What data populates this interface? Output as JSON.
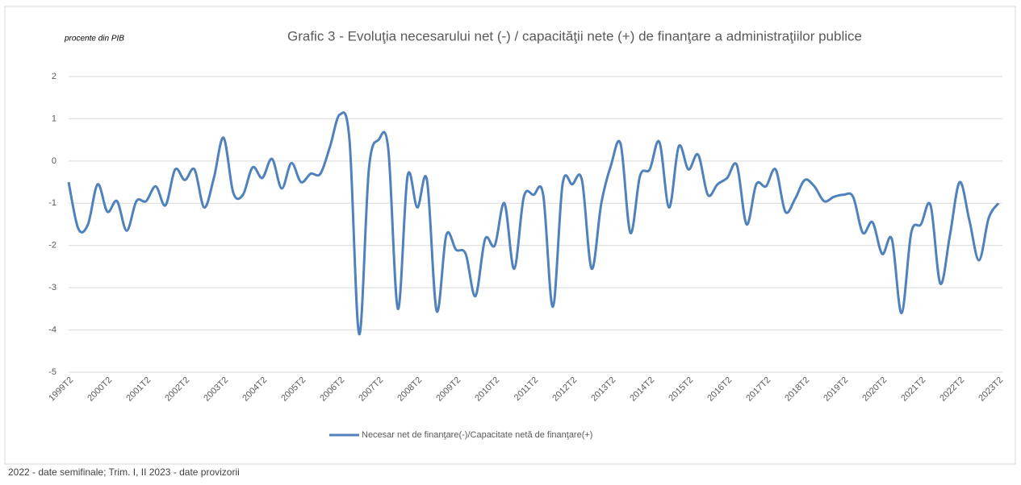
{
  "chart_data": {
    "type": "line",
    "title": "Grafic 3 - Evoluţia necesarului net (-) / capacităţii nete (+) de finanţare a administraţiilor publice",
    "y_label": "procente din PIB",
    "note": "2022 - date semifinale; Trim. I, II 2023 - date provizorii",
    "categories": [
      "1999T2",
      null,
      null,
      null,
      "2000T2",
      null,
      null,
      null,
      "2001T2",
      null,
      null,
      null,
      "2002T2",
      null,
      null,
      null,
      "2003T2",
      null,
      null,
      null,
      "2004T2",
      null,
      null,
      null,
      "2005T2",
      null,
      null,
      null,
      "2006T2",
      null,
      null,
      null,
      "2007T2",
      null,
      null,
      null,
      "2008T2",
      null,
      null,
      null,
      "2009T2",
      null,
      null,
      null,
      "2010T2",
      null,
      null,
      null,
      "2011T2",
      null,
      null,
      null,
      "2012T2",
      null,
      null,
      null,
      "2013T2",
      null,
      null,
      null,
      "2014T2",
      null,
      null,
      null,
      "2015T2",
      null,
      null,
      null,
      "2016T2",
      null,
      null,
      null,
      "2017T2",
      null,
      null,
      null,
      "2018T2",
      null,
      null,
      null,
      "2019T2",
      null,
      null,
      null,
      "2020T2",
      null,
      null,
      null,
      "2021T2",
      null,
      null,
      null,
      "2022T2",
      null,
      null,
      null,
      "2023T2"
    ],
    "series": [
      {
        "name": "Necesar net de finanţare(-)/Capacitate netă de finanţare(+)",
        "color": "#4f81bd",
        "values": [
          -0.5,
          -1.6,
          -1.5,
          -0.55,
          -1.2,
          -0.95,
          -1.65,
          -0.95,
          -0.95,
          -0.6,
          -1.05,
          -0.2,
          -0.45,
          -0.2,
          -1.1,
          -0.4,
          0.55,
          -0.75,
          -0.8,
          -0.15,
          -0.4,
          0.05,
          -0.65,
          -0.05,
          -0.5,
          -0.3,
          -0.3,
          0.35,
          1.1,
          0.5,
          -4.1,
          -0.2,
          0.5,
          0.3,
          -3.5,
          -0.35,
          -1.1,
          -0.45,
          -3.55,
          -1.75,
          -2.1,
          -2.2,
          -3.2,
          -1.85,
          -2.0,
          -1.0,
          -2.55,
          -0.85,
          -0.8,
          -0.8,
          -3.45,
          -0.55,
          -0.55,
          -0.45,
          -2.55,
          -1.0,
          -0.1,
          0.4,
          -1.7,
          -0.35,
          -0.2,
          0.45,
          -1.1,
          0.35,
          -0.2,
          0.15,
          -0.8,
          -0.55,
          -0.4,
          -0.1,
          -1.5,
          -0.55,
          -0.6,
          -0.2,
          -1.2,
          -0.9,
          -0.45,
          -0.6,
          -0.95,
          -0.85,
          -0.8,
          -0.85,
          -1.7,
          -1.45,
          -2.2,
          -1.85,
          -3.6,
          -1.7,
          -1.5,
          -1.05,
          -2.9,
          -1.75,
          -0.5,
          -1.4,
          -2.35,
          -1.35,
          -1.0
        ]
      }
    ],
    "ylim": [
      -5,
      2
    ],
    "yticks": [
      -5,
      -4,
      -3,
      -2,
      -1,
      0,
      1,
      2
    ],
    "grid": true,
    "legend": "bottom"
  }
}
